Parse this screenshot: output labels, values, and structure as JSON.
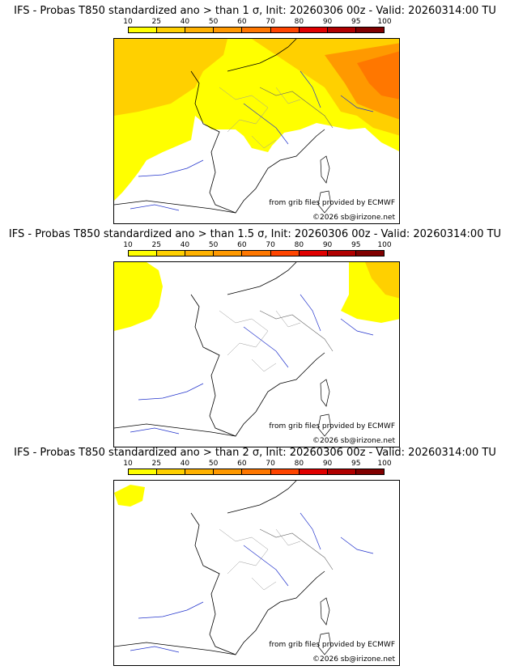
{
  "colorbar": {
    "ticks": [
      "10",
      "25",
      "40",
      "50",
      "60",
      "70",
      "80",
      "90",
      "95",
      "100"
    ],
    "colors": [
      "#ffff00",
      "#ffd000",
      "#ffb200",
      "#ff9900",
      "#ff7700",
      "#ff4400",
      "#e00000",
      "#b00000",
      "#800000"
    ]
  },
  "panels": [
    {
      "title": "IFS - Probas T850  standardized ano > than 1 σ, Init: 20260306 00z - Valid: 20260314:00 TU",
      "source": "from grib files provided by ECMWF",
      "copyright": "©2026 sb@irizone.net"
    },
    {
      "title": "IFS - Probas T850  standardized ano > than 1.5 σ, Init: 20260306 00z - Valid: 20260314:00 TU",
      "source": "from grib files provided by ECMWF",
      "copyright": "©2026 sb@irizone.net"
    },
    {
      "title": "IFS - Probas T850  standardized ano > than 2 σ, Init: 20260306 00z - Valid: 20260314:00 TU",
      "source": "from grib files provided by ECMWF",
      "copyright": "©2026 sb@irizone.net"
    }
  ]
}
